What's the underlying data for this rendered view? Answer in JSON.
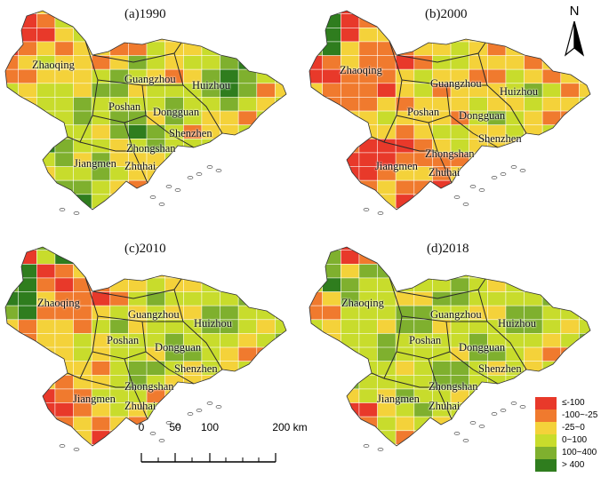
{
  "panels": [
    {
      "title": "(a)1990",
      "palette": [
        "#e8392a",
        "#f07a2e",
        "#f4d23a",
        "#c8dc2c",
        "#7fb02e",
        "#2f7d1e"
      ],
      "labels": {
        "zhaoqing": "Zhaoqing",
        "guangzhou": "Guangzhou",
        "huizhou": "Huizhou",
        "foshan": "Poshan",
        "dongguan": "Dongguan",
        "shenzhen": "Shenzhen",
        "zhongshan": "Zhongshan",
        "jiangmen": "Jiangmen",
        "zhuhai": "Zhuhai"
      }
    },
    {
      "title": "(b)2000",
      "palette": [
        "#e8392a",
        "#f07a2e",
        "#f4d23a",
        "#c8dc2c",
        "#7fb02e",
        "#2f7d1e"
      ],
      "labels": {
        "zhaoqing": "Zhaoqing",
        "guangzhou": "Guangzhou",
        "huizhou": "Huizhou",
        "foshan": "Poshan",
        "dongguan": "Dongguan",
        "shenzhen": "Shenzhen",
        "zhongshan": "Zhongshan",
        "jiangmen": "Jiangmen",
        "zhuhai": "Zhuhai"
      }
    },
    {
      "title": "(c)2010",
      "palette": [
        "#e8392a",
        "#f07a2e",
        "#f4d23a",
        "#c8dc2c",
        "#7fb02e",
        "#2f7d1e"
      ],
      "labels": {
        "zhaoqing": "Zhaoqing",
        "guangzhou": "Guangzhou",
        "huizhou": "Huizhou",
        "foshan": "Poshan",
        "dongguan": "Dongguan",
        "shenzhen": "Shenzhen",
        "zhongshan": "Zhongshan",
        "jiangmen": "Jiangmen",
        "zhuhai": "Zhuhai"
      }
    },
    {
      "title": "(d)2018",
      "palette": [
        "#e8392a",
        "#f07a2e",
        "#f4d23a",
        "#c8dc2c",
        "#7fb02e",
        "#2f7d1e"
      ],
      "labels": {
        "zhaoqing": "Zhaoqing",
        "guangzhou": "Guangzhou",
        "huizhou": "Huizhou",
        "foshan": "Poshan",
        "dongguan": "Dongguan",
        "shenzhen": "Shenzhen",
        "zhongshan": "Zhongshan",
        "jiangmen": "Jiangmen",
        "zhuhai": "Zhuhai"
      }
    }
  ],
  "north_arrow": {
    "label": "N",
    "icon": "north-arrow-icon"
  },
  "scale_bar": {
    "ticks": [
      "0",
      "50",
      "100",
      "200 km"
    ]
  },
  "legend": {
    "items": [
      {
        "label": "≤-100",
        "color": "#e8392a"
      },
      {
        "label": "-100~-25",
        "color": "#f07a2e"
      },
      {
        "label": "-25~0",
        "color": "#f4d23a"
      },
      {
        "label": "0~100",
        "color": "#c8dc2c"
      },
      {
        "label": "100~400",
        "color": "#7fb02e"
      },
      {
        "label": "> 400",
        "color": "#2f7d1e"
      }
    ]
  }
}
